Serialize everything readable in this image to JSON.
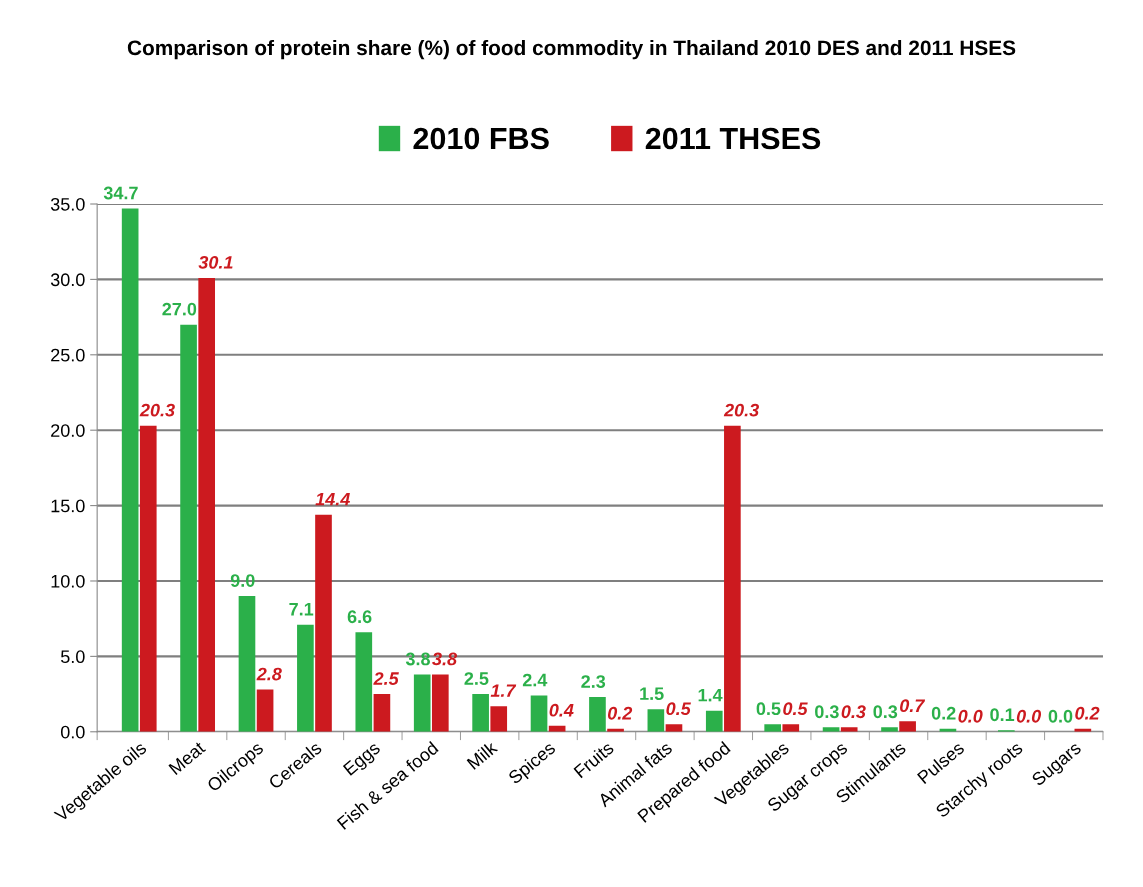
{
  "chart_data": {
    "type": "bar",
    "title": "Comparison of protein share (%) of food commodity in Thailand 2010 DES and 2011 HSES",
    "categories": [
      "Vegetable oils",
      "Meat",
      "Oilcrops",
      "Cereals",
      "Eggs",
      "Fish & sea food",
      "Milk",
      "Spices",
      "Fruits",
      "Animal fats",
      "Prepared food",
      "Vegetables",
      "Sugar crops",
      "Stimulants",
      "Pulses",
      "Starchy roots",
      "Sugars"
    ],
    "series": [
      {
        "name": "2010 FBS",
        "color": "#2bb04a",
        "values": [
          34.7,
          27.0,
          9.0,
          7.1,
          6.6,
          3.8,
          2.5,
          2.4,
          2.3,
          1.5,
          1.4,
          0.5,
          0.3,
          0.3,
          0.2,
          0.1,
          0.0
        ],
        "value_labels": [
          "34.7",
          "27.0",
          "9.0",
          "7.1",
          "6.6",
          "3.8",
          "2.5",
          "2.4",
          "2.3",
          "1.5",
          "1.4",
          "0.5",
          "0.3",
          "0.3",
          "0.2",
          "0.1",
          "0.0"
        ]
      },
      {
        "name": "2011 THSES",
        "color": "#cc1a1f",
        "values": [
          20.3,
          30.1,
          2.8,
          14.4,
          2.5,
          3.8,
          1.7,
          0.4,
          0.2,
          0.5,
          20.3,
          0.5,
          0.3,
          0.7,
          0.0,
          0.0,
          0.2
        ],
        "value_labels": [
          "20.3",
          "30.1",
          "2.8",
          "14.4",
          "2.5",
          "3.8",
          "1.7",
          "0.4",
          "0.2",
          "0.5",
          "20.3",
          "0.5",
          "0.3",
          "0.7",
          "0.0",
          "0.0",
          "0.2"
        ]
      }
    ],
    "ylim": [
      0,
      35
    ],
    "yticks": [
      {
        "value": 0,
        "label": "0.0"
      },
      {
        "value": 5,
        "label": "5.0"
      },
      {
        "value": 10,
        "label": "10.0"
      },
      {
        "value": 15,
        "label": "15.0"
      },
      {
        "value": 20,
        "label": "20.0"
      },
      {
        "value": 25,
        "label": "25.0"
      },
      {
        "value": 30,
        "label": "30.0"
      },
      {
        "value": 35,
        "label": "35.0"
      }
    ],
    "grid": "y",
    "legend": "top"
  }
}
